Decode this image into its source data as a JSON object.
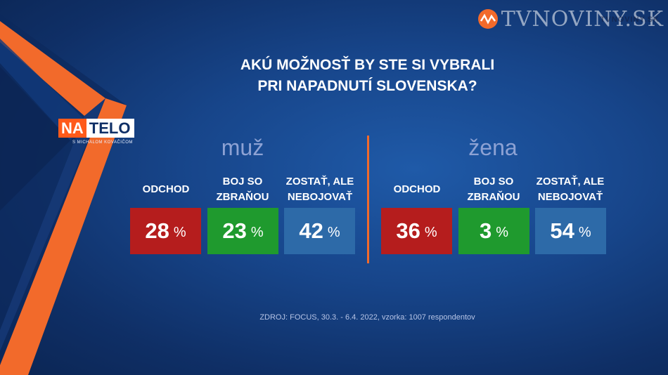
{
  "brand": {
    "name": "TVNOVINY.SK",
    "ghost": "TVNOVINY.SK"
  },
  "show": {
    "na": "NA",
    "telo": "TELO",
    "subtitle": "S MICHALOM KOVAČIČOM"
  },
  "title": {
    "line1": "AKÚ MOŽNOSŤ BY STE SI VYBRALI",
    "line2": "PRI NAPADNUTÍ SLOVENSKA?"
  },
  "source": "ZDROJ: FOCUS, 30.3. - 6.4. 2022, vzorka: 1007 respondentov",
  "colors": {
    "odchod": "#b51d1d",
    "boj": "#1f9a2e",
    "zostat": "#2d6aa8",
    "divider": "#f26a2b",
    "accent": "#ff5a1a"
  },
  "chart_data": {
    "type": "table",
    "title": "AKÚ MOŽNOSŤ BY STE SI VYBRALI PRI NAPADNUTÍ SLOVENSKA?",
    "categories": [
      "ODCHOD",
      "BOJ SO ZBRAŇOU",
      "ZOSTAŤ, ALE NEBOJOVAŤ"
    ],
    "unit": "%",
    "series": [
      {
        "name": "muž",
        "values": [
          28,
          23,
          42
        ]
      },
      {
        "name": "žena",
        "values": [
          36,
          3,
          54
        ]
      }
    ],
    "labels": {
      "muz": {
        "odchod": "ODCHOD",
        "boj1": "BOJ SO",
        "boj2": "ZBRAŇOU",
        "zostat1": "ZOSTAŤ, ALE",
        "zostat2": "NEBOJOVAŤ"
      },
      "zena": {
        "odchod": "ODCHOD",
        "boj1": "BOJ SO",
        "boj2": "ZBRAŇOU",
        "zostat1": "ZOSTAŤ, ALE",
        "zostat2": "NEBOJOVAŤ"
      }
    },
    "display": {
      "muz": {
        "odchod": "28",
        "boj": "23",
        "zostat": "42"
      },
      "zena": {
        "odchod": "36",
        "boj": "3",
        "zostat": "54"
      }
    },
    "pct_sign": "%"
  }
}
